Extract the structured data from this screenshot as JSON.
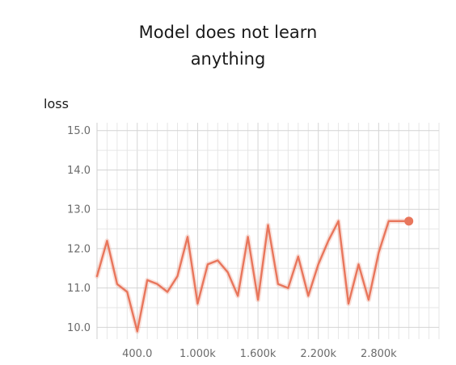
{
  "chart_data": {
    "type": "line",
    "title_lines": [
      "Model does not learn",
      "anything"
    ],
    "series_label": "loss",
    "xlabel": "",
    "ylabel": "",
    "xlim": [
      0,
      3400
    ],
    "ylim": [
      9.7,
      15.2
    ],
    "grid": true,
    "y_ticks": [
      {
        "value": 10,
        "label": "10.0"
      },
      {
        "value": 11,
        "label": "11.0"
      },
      {
        "value": 12,
        "label": "12.0"
      },
      {
        "value": 13,
        "label": "13.0"
      },
      {
        "value": 14,
        "label": "14.0"
      },
      {
        "value": 15,
        "label": "15.0"
      }
    ],
    "x_ticks": [
      {
        "value": 400,
        "label": "400.0"
      },
      {
        "value": 1000,
        "label": "1.000k"
      },
      {
        "value": 1600,
        "label": "1.600k"
      },
      {
        "value": 2200,
        "label": "2.200k"
      },
      {
        "value": 2800,
        "label": "2.800k"
      }
    ],
    "series": [
      {
        "color": "#e8765c",
        "x": [
          0,
          100,
          200,
          300,
          400,
          500,
          600,
          700,
          800,
          900,
          1000,
          1100,
          1200,
          1300,
          1400,
          1500,
          1600,
          1700,
          1800,
          1900,
          2000,
          2100,
          2200,
          2300,
          2400,
          2500,
          2600,
          2700,
          2800,
          2900,
          3000,
          3100
        ],
        "y": [
          11.3,
          12.2,
          11.1,
          10.9,
          9.9,
          11.2,
          11.1,
          10.9,
          11.3,
          12.3,
          10.6,
          11.6,
          11.7,
          11.4,
          10.8,
          12.3,
          10.7,
          12.6,
          11.1,
          11.0,
          11.8,
          10.8,
          11.6,
          12.2,
          12.7,
          10.6,
          11.6,
          10.7,
          11.9,
          12.7,
          12.7,
          12.7
        ]
      }
    ],
    "last_point": {
      "x": 3100,
      "y": 12.7
    }
  }
}
